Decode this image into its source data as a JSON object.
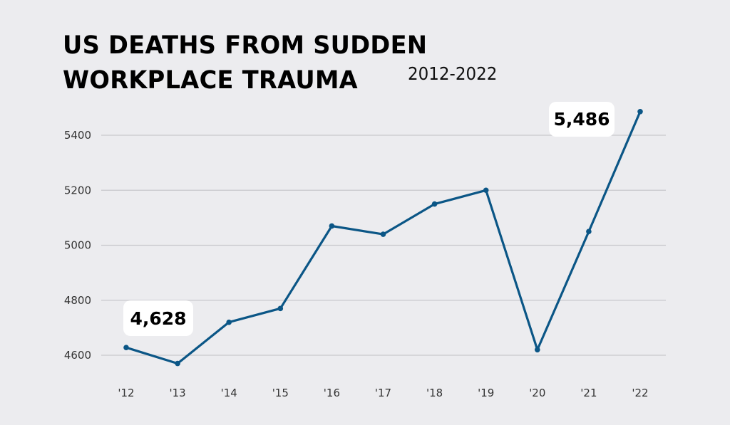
{
  "header": {
    "title_line1": "US DEATHS FROM SUDDEN",
    "title_line2": "WORKPLACE TRAUMA",
    "subtitle": "2012-2022"
  },
  "callouts": {
    "first": "4,628",
    "last": "5,486"
  },
  "colors": {
    "background": "#ececef",
    "line": "#0b5686",
    "grid": "#c8c8cc",
    "callout_bg": "#ffffff"
  },
  "chart_data": {
    "type": "line",
    "title": "US DEATHS FROM SUDDEN WORKPLACE TRAUMA",
    "subtitle": "2012-2022",
    "xlabel": "",
    "ylabel": "",
    "categories": [
      "'12",
      "'13",
      "'14",
      "'15",
      "'16",
      "'17",
      "'18",
      "'19",
      "'20",
      "'21",
      "'22"
    ],
    "series": [
      {
        "name": "Deaths",
        "values": [
          4628,
          4570,
          4720,
          4770,
          5070,
          5040,
          5150,
          5200,
          4620,
          5050,
          5486
        ]
      }
    ],
    "y_ticks": [
      4600,
      4800,
      5000,
      5200,
      5400
    ],
    "ylim": [
      4540,
      5500
    ],
    "grid": true,
    "legend": "none",
    "annotations": [
      {
        "category": "'12",
        "text": "4,628"
      },
      {
        "category": "'22",
        "text": "5,486"
      }
    ]
  }
}
